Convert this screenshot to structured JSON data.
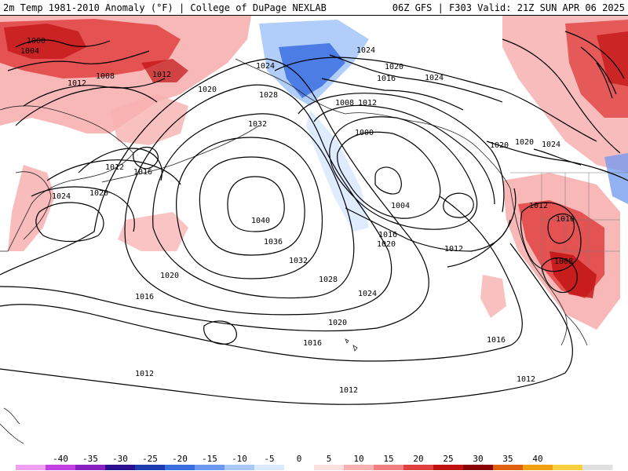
{
  "header": {
    "left_title": "2m Temp 1981-2010 Anomaly (°F) | College of DuPage NEXLAB",
    "right_title": "06Z GFS | F303 Valid: 21Z SUN APR 06 2025"
  },
  "colorbar": {
    "ticks": [
      "-40",
      "-35",
      "-30",
      "-25",
      "-20",
      "-15",
      "-10",
      "-5",
      "0",
      "5",
      "10",
      "15",
      "20",
      "25",
      "30",
      "35",
      "40"
    ],
    "colors": [
      "#f0a0f0",
      "#c040e0",
      "#8a20c0",
      "#2a1090",
      "#1e3cb0",
      "#3a6ee0",
      "#6e98f0",
      "#a8c8f8",
      "#dceaff",
      "#ffffff",
      "#fde0e0",
      "#f8b0b0",
      "#f08080",
      "#e04040",
      "#c01010",
      "#8a0000",
      "#e06010",
      "#f0a010",
      "#f8d040",
      "#e0e0e0"
    ]
  },
  "isobar_labels": [
    {
      "id": "l1000a",
      "text": "1000"
    },
    {
      "id": "l1004a",
      "text": "1004"
    },
    {
      "id": "l1008a",
      "text": "1008"
    },
    {
      "id": "l1012a",
      "text": "1012"
    },
    {
      "id": "l1012b",
      "text": "1012"
    },
    {
      "id": "l1020a",
      "text": "1020"
    },
    {
      "id": "l1024a",
      "text": "1024"
    },
    {
      "id": "l1028a",
      "text": "1028"
    },
    {
      "id": "l1024b",
      "text": "1024"
    },
    {
      "id": "l1020b",
      "text": "1020"
    },
    {
      "id": "l1016a",
      "text": "1016"
    },
    {
      "id": "l1024c",
      "text": "1024"
    },
    {
      "id": "l1008b",
      "text": "1008"
    },
    {
      "id": "l1012c",
      "text": "1012"
    },
    {
      "id": "l1032a",
      "text": "1032"
    },
    {
      "id": "l1000b",
      "text": "1000"
    },
    {
      "id": "l1012d",
      "text": "1012"
    },
    {
      "id": "l1016b",
      "text": "1016"
    },
    {
      "id": "l1024d",
      "text": "1024"
    },
    {
      "id": "l1020c",
      "text": "1020"
    },
    {
      "id": "l1040a",
      "text": "1040"
    },
    {
      "id": "l1036a",
      "text": "1036"
    },
    {
      "id": "l1032b",
      "text": "1032"
    },
    {
      "id": "l1028b",
      "text": "1028"
    },
    {
      "id": "l1004b",
      "text": "1004"
    },
    {
      "id": "l1016c",
      "text": "1016"
    },
    {
      "id": "l1020d",
      "text": "1020"
    },
    {
      "id": "l1012e",
      "text": "1012"
    },
    {
      "id": "l1020e",
      "text": "1020"
    },
    {
      "id": "l1024e",
      "text": "1024"
    },
    {
      "id": "l1012f",
      "text": "1012"
    },
    {
      "id": "l1016d",
      "text": "1016"
    },
    {
      "id": "l1008c",
      "text": "1008"
    },
    {
      "id": "l1020f",
      "text": "1020"
    },
    {
      "id": "l1016e",
      "text": "1016"
    },
    {
      "id": "l1020g",
      "text": "1020"
    },
    {
      "id": "l1016f",
      "text": "1016"
    },
    {
      "id": "l1016g",
      "text": "1016"
    },
    {
      "id": "l1012g",
      "text": "1012"
    },
    {
      "id": "l1012h",
      "text": "1012"
    },
    {
      "id": "l1012i",
      "text": "1012"
    },
    {
      "id": "l1020h",
      "text": "1020"
    },
    {
      "id": "l1024f",
      "text": "1024"
    }
  ]
}
